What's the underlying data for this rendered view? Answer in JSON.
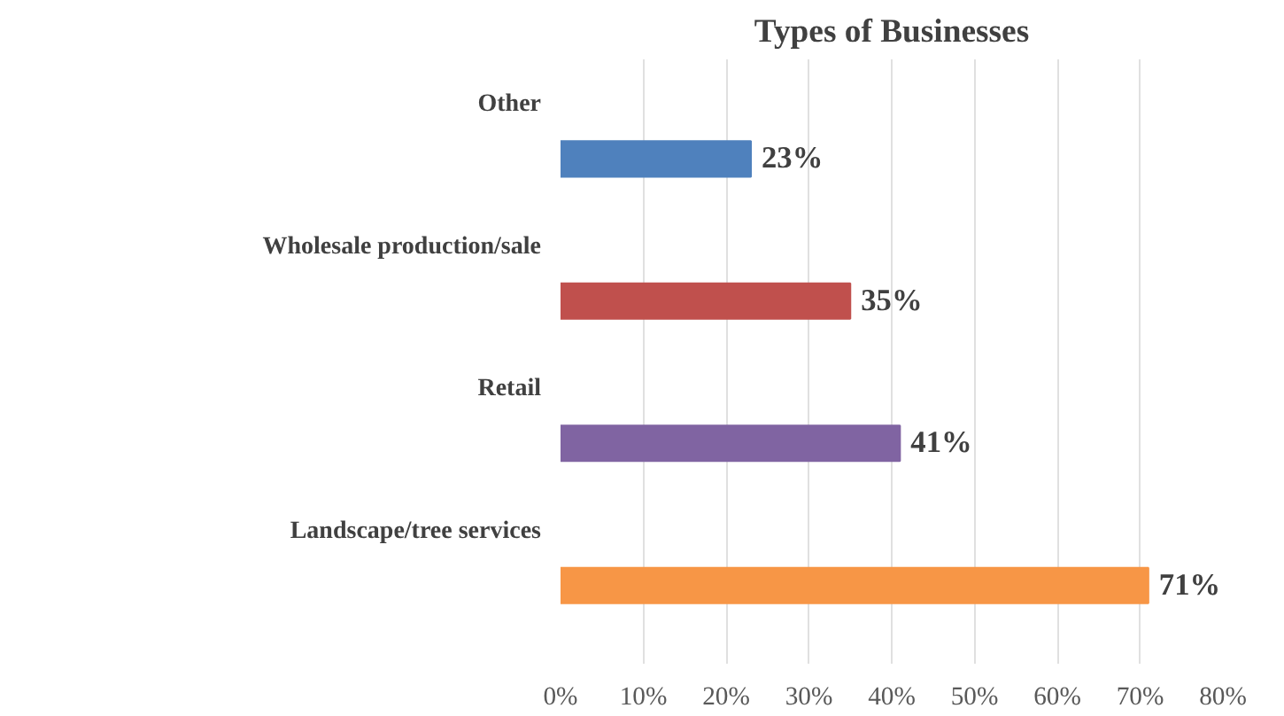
{
  "chart_data": {
    "type": "bar",
    "orientation": "horizontal",
    "title": "Types of Businesses",
    "categories": [
      "Other",
      "Wholesale production/sale",
      "Retail",
      "Landscape/tree services"
    ],
    "values": [
      23,
      35,
      41,
      71
    ],
    "colors": [
      "#4f81bd",
      "#c0504d",
      "#8064a2",
      "#f79646"
    ],
    "value_labels": [
      "23%",
      "35%",
      "41%",
      "71%"
    ],
    "xlim": [
      0,
      80
    ],
    "xticks": [
      {
        "value": 0,
        "label": "0%"
      },
      {
        "value": 10,
        "label": "10%"
      },
      {
        "value": 20,
        "label": "20%"
      },
      {
        "value": 30,
        "label": "30%"
      },
      {
        "value": 40,
        "label": "40%"
      },
      {
        "value": 50,
        "label": "50%"
      },
      {
        "value": 60,
        "label": "60%"
      },
      {
        "value": 70,
        "label": "70%"
      },
      {
        "value": 80,
        "label": "80%"
      }
    ],
    "grid": "x"
  }
}
